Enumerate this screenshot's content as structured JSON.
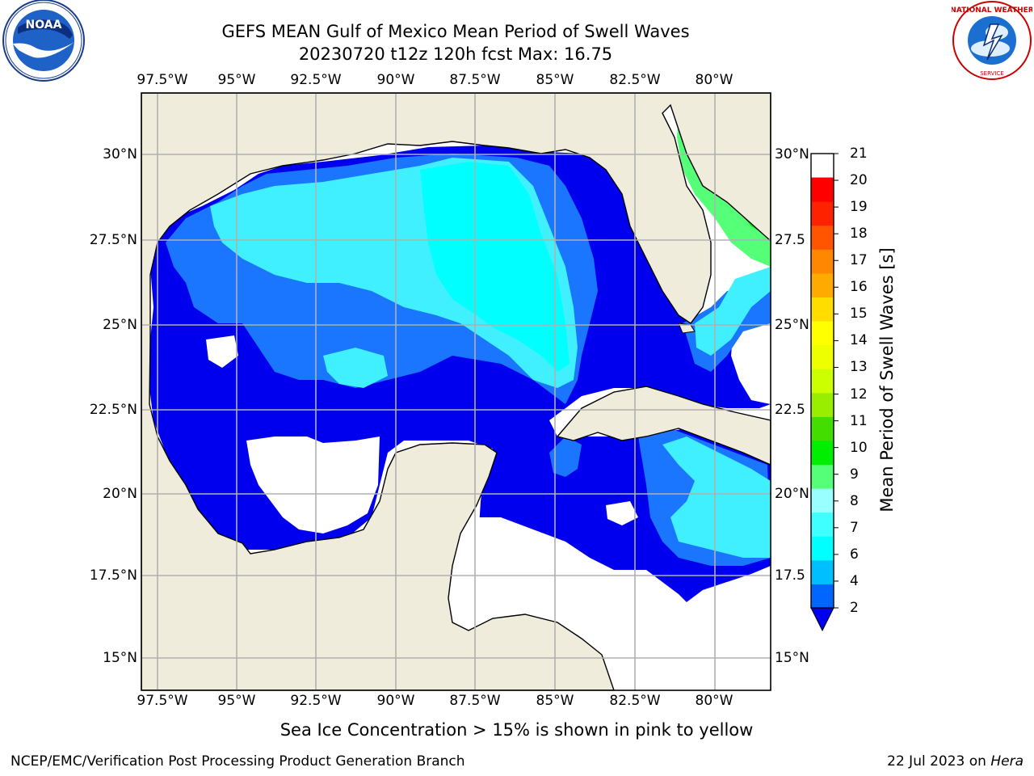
{
  "title": {
    "line1": "GEFS MEAN Gulf of Mexico Mean Period of Swell Waves",
    "line2": "20230720 t12z 120h fcst   Max: 16.75"
  },
  "axes": {
    "lon_labels": [
      "97.5°W",
      "95°W",
      "92.5°W",
      "90°W",
      "87.5°W",
      "85°W",
      "82.5°W",
      "80°W"
    ],
    "lat_labels_left": [
      "30°N",
      "27.5°N",
      "25°N",
      "22.5°N",
      "20°N",
      "17.5°N",
      "15°N"
    ],
    "lat_labels_right": [
      "30°N",
      "27.5",
      "25°N",
      "22.5",
      "20°N",
      "17.5",
      "15°N"
    ]
  },
  "colorbar": {
    "title": "Mean Period of Swell Waves [s]",
    "ticks": [
      "2",
      "4",
      "6",
      "7",
      "8",
      "9",
      "10",
      "11",
      "12",
      "13",
      "14",
      "15",
      "16",
      "17",
      "18",
      "19",
      "20",
      "21"
    ],
    "colors": [
      "#0000ee",
      "#0066ff",
      "#00bfff",
      "#00ffff",
      "#40ffff",
      "#99ffff",
      "#55ff77",
      "#00ee00",
      "#44dd00",
      "#99ee00",
      "#ccff00",
      "#eeff00",
      "#ffff00",
      "#ffdd00",
      "#ffaa00",
      "#ff8800",
      "#ff5500",
      "#ff2200",
      "#ff0000"
    ]
  },
  "note": "Sea Ice Concentration > 15% is shown in pink to yellow",
  "footer": {
    "left": "NCEP/EMC/Verification Post Processing Product Generation Branch",
    "right_prefix": "22 Jul 2023 on ",
    "right_host": "Hera"
  },
  "colors": {
    "land": "#efecdc",
    "grid": "#b0b0b0",
    "deep_blue": "#0000ee",
    "mid_blue": "#1a75ff",
    "light_cyan": "#40f0ff",
    "cyan": "#00ffff",
    "green": "#00ee00",
    "yellow_green": "#ccff00"
  }
}
